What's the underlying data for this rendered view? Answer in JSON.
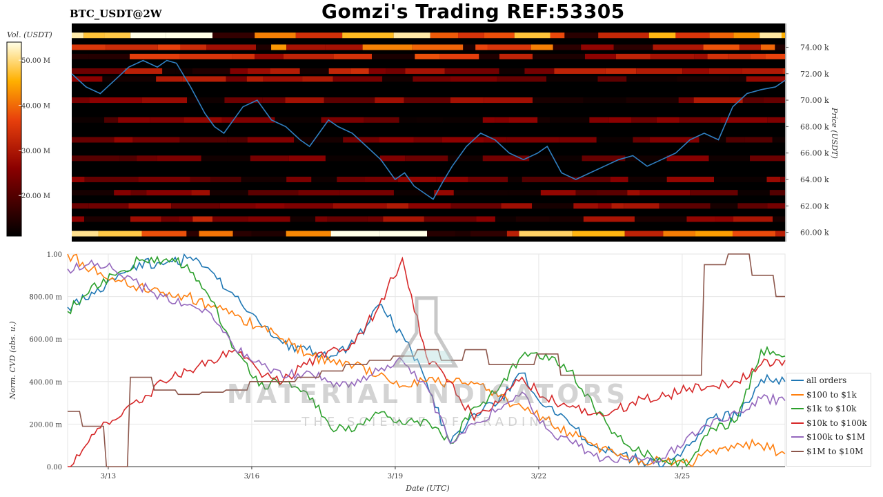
{
  "header": {
    "pair_label": "BTC_USDT@2W",
    "title": "Gomzi's Trading REF:53305"
  },
  "colorbar": {
    "label": "Vol. (USDT)",
    "ticks": [
      "20.00 M",
      "30.00 M",
      "40.00 M",
      "50.00 M"
    ],
    "tick_values": [
      20,
      30,
      40,
      50
    ],
    "range": [
      11,
      54
    ]
  },
  "watermark": {
    "line1": "MATERIAL INDICATORS",
    "line2": "THE SCIENCE OF TRADING"
  },
  "chart_data": [
    {
      "type": "heatmap",
      "ylabel": "Price (USDT)",
      "ylim": [
        59.3,
        75.8
      ],
      "y_ticks": [
        "60.00 k",
        "62.00 k",
        "64.00 k",
        "66.00 k",
        "68.00 k",
        "70.00 k",
        "72.00 k",
        "74.00 k"
      ],
      "y_tick_values": [
        60,
        62,
        64,
        66,
        68,
        70,
        72,
        74
      ],
      "price_series_color": "#2f7fc1",
      "price": {
        "x": [
          0,
          0.3,
          0.6,
          0.9,
          1.2,
          1.5,
          1.8,
          2.0,
          2.2,
          2.5,
          2.8,
          3.0,
          3.2,
          3.4,
          3.6,
          3.9,
          4.2,
          4.5,
          4.8,
          5.0,
          5.2,
          5.4,
          5.6,
          5.9,
          6.2,
          6.5,
          6.8,
          7.0,
          7.2,
          7.4,
          7.6,
          7.8,
          8.0,
          8.3,
          8.6,
          8.9,
          9.2,
          9.5,
          9.8,
          10.0,
          10.3,
          10.6,
          10.9,
          11.2,
          11.5,
          11.8,
          12.1,
          12.4,
          12.7,
          13.0,
          13.3,
          13.6,
          13.9,
          14.2,
          14.5,
          14.8,
          15.0
        ],
        "y": [
          72.0,
          71.0,
          70.5,
          71.5,
          72.5,
          73.0,
          72.5,
          73.0,
          72.8,
          71.0,
          69.0,
          68.0,
          67.5,
          68.5,
          69.5,
          70.0,
          68.5,
          68.0,
          67.0,
          66.5,
          67.5,
          68.5,
          68.0,
          67.5,
          66.5,
          65.5,
          64.0,
          64.5,
          63.5,
          63.0,
          62.5,
          63.8,
          65.0,
          66.5,
          67.5,
          67.0,
          66.0,
          65.5,
          66.0,
          66.5,
          64.5,
          64.0,
          64.5,
          65.0,
          65.5,
          65.8,
          65.0,
          65.5,
          66.0,
          67.0,
          67.5,
          67.0,
          69.5,
          70.5,
          70.8,
          71.0,
          71.5
        ]
      },
      "hot_levels": [
        {
          "price": 74.9,
          "intensity": 0.86
        },
        {
          "price": 74.0,
          "intensity": 0.66
        },
        {
          "price": 73.3,
          "intensity": 0.55
        },
        {
          "price": 72.2,
          "intensity": 0.48
        },
        {
          "price": 71.6,
          "intensity": 0.42
        },
        {
          "price": 70.0,
          "intensity": 0.4
        },
        {
          "price": 68.5,
          "intensity": 0.33
        },
        {
          "price": 67.0,
          "intensity": 0.35
        },
        {
          "price": 65.6,
          "intensity": 0.3
        },
        {
          "price": 64.0,
          "intensity": 0.34
        },
        {
          "price": 63.0,
          "intensity": 0.36
        },
        {
          "price": 62.0,
          "intensity": 0.4
        },
        {
          "price": 61.0,
          "intensity": 0.45
        },
        {
          "price": 59.9,
          "intensity": 0.82
        }
      ]
    },
    {
      "type": "line",
      "xlabel": "Date (UTC)",
      "ylabel": "Norm. CVD (abs. u.)",
      "xlim": [
        0,
        15
      ],
      "ylim": [
        0,
        1
      ],
      "x_ticks": [
        "3/13",
        "3/16",
        "3/19",
        "3/22",
        "3/25"
      ],
      "x_tick_values": [
        0.85,
        3.85,
        6.85,
        9.85,
        12.85
      ],
      "y_ticks": [
        "0.00",
        "200.00 m",
        "400.00 m",
        "600.00 m",
        "800.00 m",
        "1.00"
      ],
      "y_tick_values": [
        0,
        0.2,
        0.4,
        0.6,
        0.8,
        1.0
      ],
      "grid": true,
      "legend_position": "lower-right",
      "x": [
        0,
        0.5,
        1,
        1.5,
        2,
        2.5,
        3,
        3.5,
        4,
        4.5,
        5,
        5.5,
        6,
        6.5,
        7,
        7.5,
        8,
        8.5,
        9,
        9.5,
        10,
        10.5,
        11,
        11.5,
        12,
        12.5,
        13,
        13.5,
        14,
        14.5,
        15
      ],
      "series": [
        {
          "name": "all orders",
          "color": "#1f77b4",
          "values": [
            0.75,
            0.82,
            0.88,
            0.96,
            0.95,
            0.98,
            0.92,
            0.8,
            0.68,
            0.58,
            0.55,
            0.52,
            0.58,
            0.76,
            0.62,
            0.4,
            0.11,
            0.25,
            0.3,
            0.44,
            0.28,
            0.2,
            0.1,
            0.05,
            0.03,
            0.02,
            0.1,
            0.23,
            0.24,
            0.41,
            0.4
          ]
        },
        {
          "name": "$100 to $1k",
          "color": "#ff7f0e",
          "values": [
            1.0,
            0.93,
            0.87,
            0.85,
            0.82,
            0.8,
            0.75,
            0.71,
            0.66,
            0.6,
            0.53,
            0.49,
            0.48,
            0.43,
            0.38,
            0.4,
            0.4,
            0.39,
            0.33,
            0.28,
            0.22,
            0.16,
            0.1,
            0.05,
            0.03,
            0.02,
            0.01,
            0.08,
            0.11,
            0.1,
            0.06
          ]
        },
        {
          "name": "$1k to $10k",
          "color": "#2ca02c",
          "values": [
            0.73,
            0.85,
            0.9,
            0.97,
            0.97,
            0.95,
            0.78,
            0.55,
            0.38,
            0.4,
            0.35,
            0.18,
            0.17,
            0.25,
            0.2,
            0.22,
            0.11,
            0.28,
            0.36,
            0.52,
            0.53,
            0.45,
            0.28,
            0.14,
            0.06,
            0.03,
            0.02,
            0.18,
            0.22,
            0.55,
            0.52
          ]
        },
        {
          "name": "$10k to $100k",
          "color": "#d62728",
          "values": [
            0.0,
            0.15,
            0.22,
            0.3,
            0.4,
            0.45,
            0.5,
            0.55,
            0.45,
            0.4,
            0.48,
            0.55,
            0.58,
            0.75,
            0.98,
            0.52,
            0.4,
            0.22,
            0.3,
            0.42,
            0.32,
            0.28,
            0.25,
            0.27,
            0.32,
            0.33,
            0.37,
            0.38,
            0.4,
            0.48,
            0.5
          ]
        },
        {
          "name": "$100k to $1M",
          "color": "#9467bd",
          "values": [
            0.93,
            0.97,
            0.92,
            0.85,
            0.8,
            0.76,
            0.72,
            0.55,
            0.5,
            0.42,
            0.45,
            0.4,
            0.38,
            0.45,
            0.5,
            0.38,
            0.11,
            0.2,
            0.27,
            0.35,
            0.18,
            0.12,
            0.05,
            0.02,
            0.03,
            0.04,
            0.15,
            0.22,
            0.25,
            0.32,
            0.31
          ]
        },
        {
          "name": "$1M to $10M",
          "color": "#8c564b",
          "values": [
            0.26,
            0.19,
            0.0,
            0.42,
            0.36,
            0.34,
            0.35,
            0.36,
            0.4,
            0.4,
            0.42,
            0.45,
            0.48,
            0.5,
            0.52,
            0.55,
            0.5,
            0.55,
            0.48,
            0.48,
            0.53,
            0.43,
            0.43,
            0.43,
            0.43,
            0.43,
            0.43,
            0.95,
            1.0,
            0.9,
            0.8
          ]
        }
      ]
    }
  ]
}
